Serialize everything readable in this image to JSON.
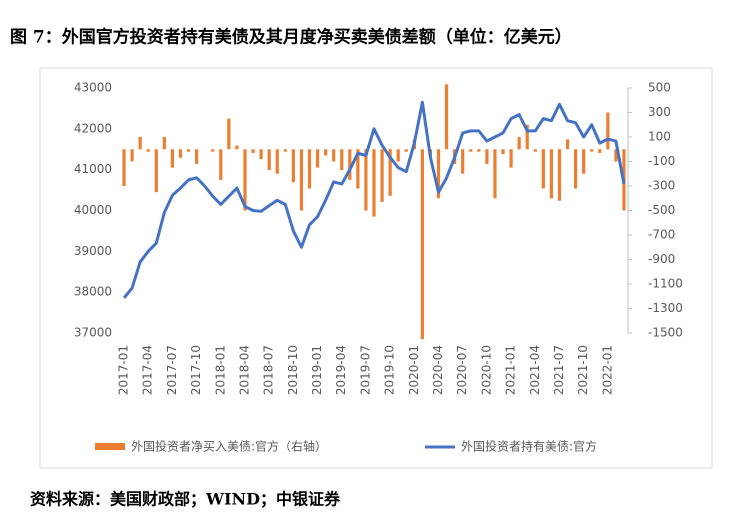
{
  "chart_data": {
    "type": "bar-line",
    "title": "图 7：外国官方投资者持有美债及其月度净买卖美债差额（单位：亿美元）",
    "source": "资料来源：美国财政部；WIND；中银证券",
    "categories": [
      "2017-01",
      null,
      null,
      "2017-04",
      null,
      null,
      "2017-07",
      null,
      null,
      "2017-10",
      null,
      null,
      "2018-01",
      null,
      null,
      "2018-04",
      null,
      null,
      "2018-07",
      null,
      null,
      "2018-10",
      null,
      null,
      "2019-01",
      null,
      null,
      "2019-04",
      null,
      null,
      "2019-07",
      null,
      null,
      "2019-10",
      null,
      null,
      "2020-01",
      null,
      null,
      "2020-04",
      null,
      null,
      "2020-07",
      null,
      null,
      "2020-10",
      null,
      null,
      "2021-01",
      null,
      null,
      "2021-04",
      null,
      null,
      "2021-07",
      null,
      null,
      "2021-10",
      null,
      null,
      "2022-01",
      null,
      null
    ],
    "series": [
      {
        "name": "外国投资者净买入美债:官方（右轴）",
        "type": "bar",
        "axis": "y2",
        "color": "#ed7d31",
        "values": [
          -300,
          -100,
          100,
          -20,
          -350,
          100,
          -150,
          -70,
          -20,
          -120,
          0,
          -20,
          -250,
          250,
          30,
          -500,
          -30,
          -80,
          -170,
          -200,
          -20,
          -270,
          -500,
          -320,
          -150,
          -50,
          -100,
          -170,
          -250,
          -320,
          -500,
          -550,
          -430,
          -380,
          -100,
          -20,
          80,
          -1550,
          -60,
          -400,
          530,
          -120,
          -200,
          -20,
          -20,
          -120,
          -400,
          -40,
          -150,
          100,
          200,
          -20,
          -320,
          -400,
          -420,
          80,
          -320,
          -200,
          -20,
          -30,
          300,
          -100,
          -500
        ]
      },
      {
        "name": "外国投资者持有美债:官方",
        "type": "line",
        "color": "#4472c4",
        "values": [
          37860,
          38100,
          38740,
          39000,
          39200,
          39950,
          40370,
          40550,
          40750,
          40800,
          40600,
          40350,
          40150,
          40350,
          40550,
          40100,
          40000,
          39980,
          40120,
          40250,
          40150,
          39500,
          39100,
          39650,
          39850,
          40250,
          40700,
          40650,
          41000,
          41400,
          41350,
          42000,
          41600,
          41300,
          41050,
          40950,
          41650,
          42650,
          41300,
          40450,
          40800,
          41300,
          41900,
          41950,
          41950,
          41700,
          41800,
          41900,
          42250,
          42350,
          41950,
          41950,
          42250,
          42200,
          42600,
          42200,
          42150,
          41800,
          42100,
          41650,
          41750,
          41700,
          40650
        ]
      }
    ],
    "ylim": [
      37000,
      43000
    ],
    "yticks": [
      37000,
      38000,
      39000,
      40000,
      41000,
      42000,
      43000
    ],
    "y2lim": [
      -1500,
      500
    ],
    "y2ticks": [
      -1500,
      -1300,
      -1100,
      -900,
      -700,
      -500,
      -300,
      -100,
      100,
      300,
      500
    ]
  }
}
